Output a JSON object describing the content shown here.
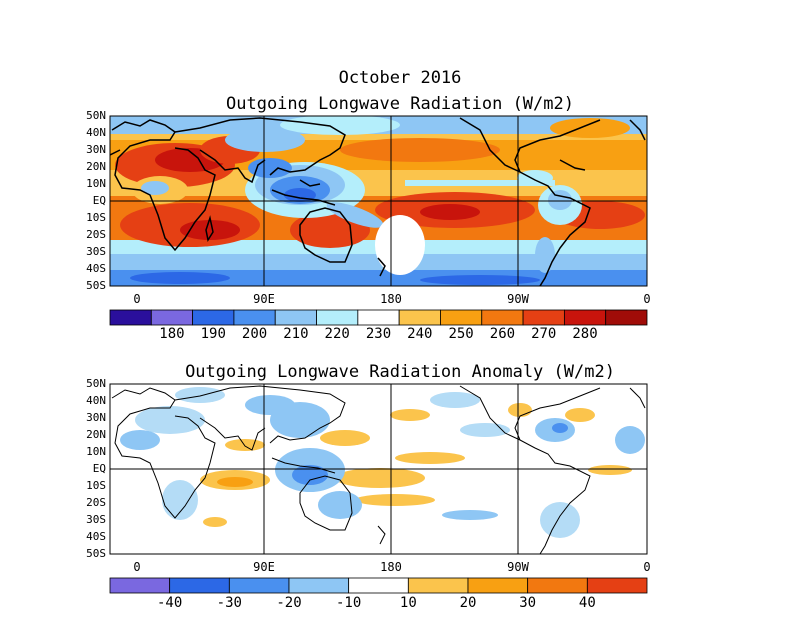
{
  "main_title": "October 2016",
  "panels": [
    {
      "title": "Outgoing Longwave Radiation (W/m2)",
      "lat_labels": [
        "50N",
        "40N",
        "30N",
        "20N",
        "10N",
        "EQ",
        "10S",
        "20S",
        "30S",
        "40S",
        "50S"
      ],
      "lon_labels": [
        "0",
        "90E",
        "180",
        "90W",
        "0"
      ],
      "colorbar": {
        "colors": [
          "#2a0f9c",
          "#7a68e0",
          "#2c68e6",
          "#4a90ef",
          "#8ec6f4",
          "#b4eefb",
          "#ffffff",
          "#fbc44c",
          "#f8a012",
          "#f27810",
          "#e54014",
          "#c8140c",
          "#a00c08"
        ],
        "labels": [
          "180",
          "190",
          "200",
          "210",
          "220",
          "230",
          "240",
          "250",
          "260",
          "270",
          "280"
        ]
      }
    },
    {
      "title": "Outgoing Longwave Radiation Anomaly (W/m2)",
      "lat_labels": [
        "50N",
        "40N",
        "30N",
        "20N",
        "10N",
        "EQ",
        "10S",
        "20S",
        "30S",
        "40S",
        "50S"
      ],
      "lon_labels": [
        "0",
        "90E",
        "180",
        "90W",
        "0"
      ],
      "colorbar": {
        "colors": [
          "#7a68e0",
          "#2c68e6",
          "#4a90ef",
          "#8ec6f4",
          "#ffffff",
          "#fbc44c",
          "#f8a012",
          "#f27810",
          "#e54014"
        ],
        "labels": [
          "-40",
          "-30",
          "-20",
          "-10",
          "10",
          "20",
          "30",
          "40"
        ]
      }
    }
  ]
}
